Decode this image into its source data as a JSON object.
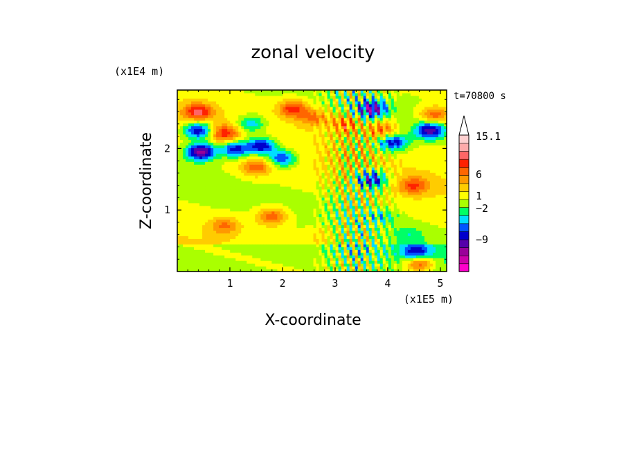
{
  "chart_data": {
    "type": "heatmap",
    "title": "zonal velocity",
    "xlabel": "X-coordinate",
    "ylabel": "Z-coordinate",
    "x_unit": "(x1E5 m)",
    "y_unit": "(x1E4 m)",
    "time_label": "t=70800 s",
    "xlim": [
      0,
      5.12
    ],
    "ylim": [
      0,
      2.95
    ],
    "x_ticks": [
      "1",
      "2",
      "3",
      "4",
      "5"
    ],
    "y_ticks": [
      "1",
      "2"
    ],
    "colorbar": {
      "tick_labels": [
        "15.1",
        "6",
        "1",
        "-2",
        "-9"
      ],
      "colors": [
        "#ff00cc",
        "#cc00aa",
        "#990099",
        "#5500aa",
        "#0000cc",
        "#0055ff",
        "#00ddff",
        "#00ff66",
        "#aaff00",
        "#ffff00",
        "#ffcc00",
        "#ff9900",
        "#ff6600",
        "#ff2200",
        "#ff6666",
        "#ffaaaa",
        "#ffd0d0"
      ],
      "extend": "max"
    },
    "structure": {
      "description_free": true,
      "features": [
        {
          "x": 0.4,
          "z": 2.6,
          "v": 8
        },
        {
          "x": 0.4,
          "z": 2.3,
          "v": -10
        },
        {
          "x": 0.45,
          "z": 1.95,
          "v": -12
        },
        {
          "x": 0.9,
          "z": 2.25,
          "v": 7
        },
        {
          "x": 1.1,
          "z": 2.0,
          "v": -9
        },
        {
          "x": 1.4,
          "z": 2.4,
          "v": -6
        },
        {
          "x": 1.6,
          "z": 2.05,
          "v": -10
        },
        {
          "x": 1.5,
          "z": 1.7,
          "v": 6
        },
        {
          "x": 2.0,
          "z": 1.85,
          "v": -8
        },
        {
          "x": 2.2,
          "z": 2.65,
          "v": 8
        },
        {
          "x": 2.6,
          "z": 2.5,
          "v": 5
        },
        {
          "x": 3.2,
          "z": 2.4,
          "v": 5
        },
        {
          "x": 3.7,
          "z": 2.65,
          "v": -10
        },
        {
          "x": 3.9,
          "z": 2.3,
          "v": 6
        },
        {
          "x": 4.1,
          "z": 2.1,
          "v": -9
        },
        {
          "x": 3.7,
          "z": 1.5,
          "v": -10
        },
        {
          "x": 4.5,
          "z": 1.4,
          "v": 6
        },
        {
          "x": 4.8,
          "z": 2.3,
          "v": -10
        },
        {
          "x": 4.9,
          "z": 2.55,
          "v": 7
        },
        {
          "x": 0.9,
          "z": 0.75,
          "v": 5
        },
        {
          "x": 1.8,
          "z": 0.9,
          "v": 7
        },
        {
          "x": 2.7,
          "z": 0.6,
          "v": 2
        },
        {
          "x": 3.9,
          "z": 0.9,
          "v": -3
        },
        {
          "x": 4.4,
          "z": 0.6,
          "v": -3
        },
        {
          "x": 4.55,
          "z": 0.3,
          "v": -8
        },
        {
          "x": 4.6,
          "z": 0.15,
          "v": 9
        }
      ]
    }
  }
}
